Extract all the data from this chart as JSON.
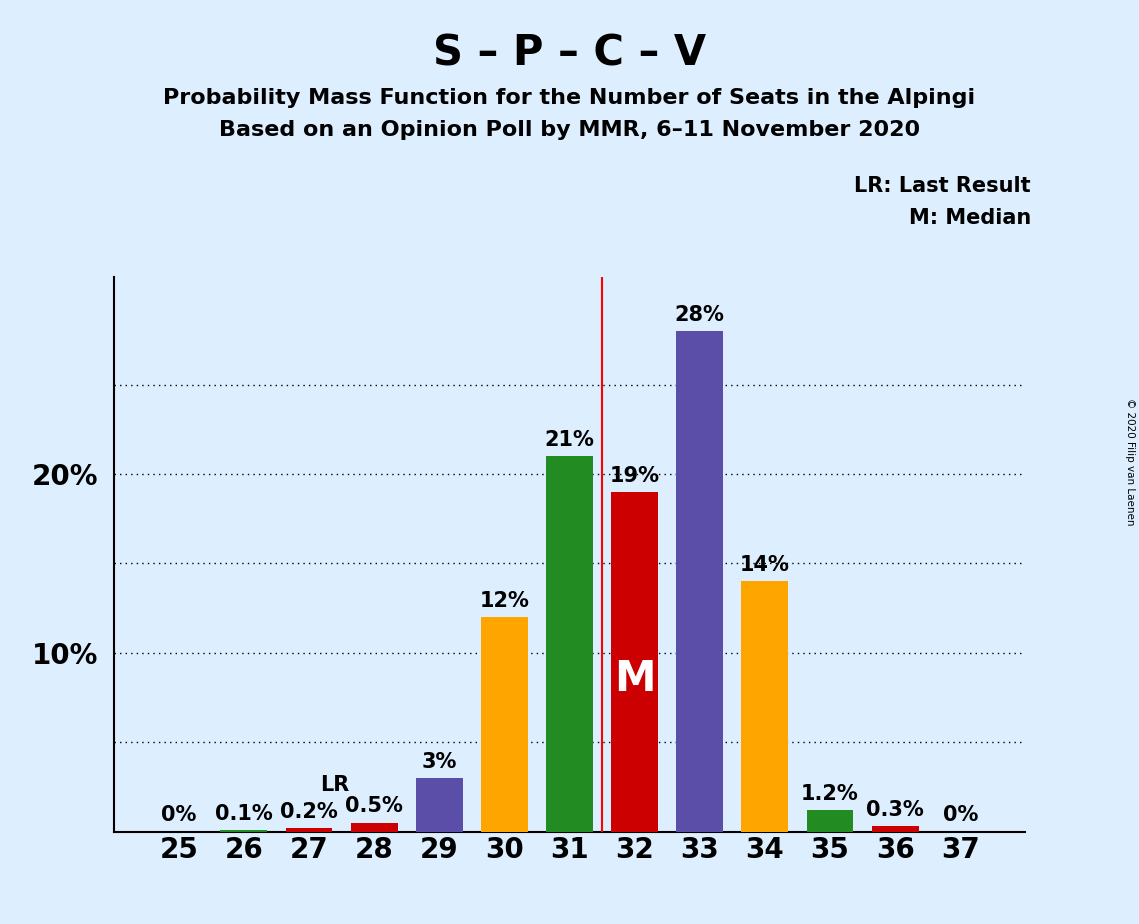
{
  "title": "S – P – C – V",
  "subtitle1": "Probability Mass Function for the Number of Seats in the Alpingi",
  "subtitle2": "Based on an Opinion Poll by MMR, 6–11 November 2020",
  "copyright": "© 2020 Filip van Laenen",
  "legend_lr": "LR: Last Result",
  "legend_m": "M: Median",
  "categories": [
    25,
    26,
    27,
    28,
    29,
    30,
    31,
    32,
    33,
    34,
    35,
    36,
    37
  ],
  "values": [
    0.0,
    0.1,
    0.2,
    0.5,
    3.0,
    12.0,
    21.0,
    19.0,
    28.0,
    14.0,
    1.2,
    0.3,
    0.0
  ],
  "bar_colors": [
    "#cc0000",
    "#228B22",
    "#cc0000",
    "#cc0000",
    "#5b4ea8",
    "#FFA500",
    "#228B22",
    "#cc0000",
    "#5b4ea8",
    "#FFA500",
    "#228B22",
    "#cc0000",
    "#cc0000"
  ],
  "labels": [
    "0%",
    "0.1%",
    "0.2%",
    "0.5%",
    "3%",
    "12%",
    "21%",
    "19%",
    "28%",
    "14%",
    "1.2%",
    "0.3%",
    "0%"
  ],
  "lr_bar_index": 3,
  "median_bar_index": 7,
  "ylim": [
    0,
    31
  ],
  "dotted_yticks": [
    5,
    10,
    15,
    20,
    25
  ],
  "ytick_labels_vals": [
    10,
    20
  ],
  "ytick_labels_str": [
    "10%",
    "20%"
  ],
  "background_color": "#ddeeff",
  "title_fontsize": 30,
  "subtitle_fontsize": 16,
  "label_fontsize": 15,
  "axis_fontsize": 20
}
